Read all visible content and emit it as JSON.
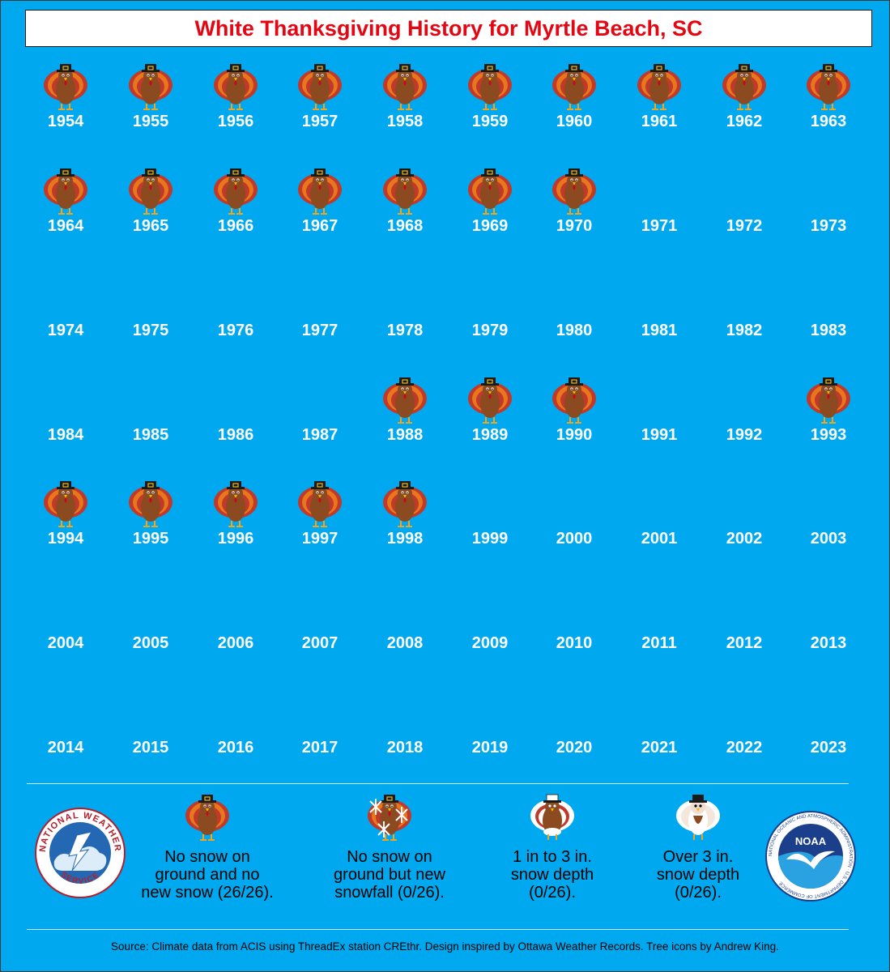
{
  "title": "White Thanksgiving History for Myrtle Beach, SC",
  "years": [
    {
      "year": "1954",
      "icon": "turkey-icon"
    },
    {
      "year": "1955",
      "icon": "turkey-icon"
    },
    {
      "year": "1956",
      "icon": "turkey-icon"
    },
    {
      "year": "1957",
      "icon": "turkey-icon"
    },
    {
      "year": "1958",
      "icon": "turkey-icon"
    },
    {
      "year": "1959",
      "icon": "turkey-icon"
    },
    {
      "year": "1960",
      "icon": "turkey-icon"
    },
    {
      "year": "1961",
      "icon": "turkey-icon"
    },
    {
      "year": "1962",
      "icon": "turkey-icon"
    },
    {
      "year": "1963",
      "icon": "turkey-icon"
    },
    {
      "year": "1964",
      "icon": "turkey-icon"
    },
    {
      "year": "1965",
      "icon": "turkey-icon"
    },
    {
      "year": "1966",
      "icon": "turkey-icon"
    },
    {
      "year": "1967",
      "icon": "turkey-icon"
    },
    {
      "year": "1968",
      "icon": "turkey-icon"
    },
    {
      "year": "1969",
      "icon": "turkey-icon"
    },
    {
      "year": "1970",
      "icon": "turkey-icon"
    },
    {
      "year": "1971",
      "icon": ""
    },
    {
      "year": "1972",
      "icon": ""
    },
    {
      "year": "1973",
      "icon": ""
    },
    {
      "year": "1974",
      "icon": ""
    },
    {
      "year": "1975",
      "icon": ""
    },
    {
      "year": "1976",
      "icon": ""
    },
    {
      "year": "1977",
      "icon": ""
    },
    {
      "year": "1978",
      "icon": ""
    },
    {
      "year": "1979",
      "icon": ""
    },
    {
      "year": "1980",
      "icon": ""
    },
    {
      "year": "1981",
      "icon": ""
    },
    {
      "year": "1982",
      "icon": ""
    },
    {
      "year": "1983",
      "icon": ""
    },
    {
      "year": "1984",
      "icon": ""
    },
    {
      "year": "1985",
      "icon": ""
    },
    {
      "year": "1986",
      "icon": ""
    },
    {
      "year": "1987",
      "icon": ""
    },
    {
      "year": "1988",
      "icon": "turkey-icon"
    },
    {
      "year": "1989",
      "icon": "turkey-icon"
    },
    {
      "year": "1990",
      "icon": "turkey-icon"
    },
    {
      "year": "1991",
      "icon": ""
    },
    {
      "year": "1992",
      "icon": ""
    },
    {
      "year": "1993",
      "icon": "turkey-icon"
    },
    {
      "year": "1994",
      "icon": "turkey-icon"
    },
    {
      "year": "1995",
      "icon": "turkey-icon"
    },
    {
      "year": "1996",
      "icon": "turkey-icon"
    },
    {
      "year": "1997",
      "icon": "turkey-icon"
    },
    {
      "year": "1998",
      "icon": "turkey-icon"
    },
    {
      "year": "1999",
      "icon": ""
    },
    {
      "year": "2000",
      "icon": ""
    },
    {
      "year": "2001",
      "icon": ""
    },
    {
      "year": "2002",
      "icon": ""
    },
    {
      "year": "2003",
      "icon": ""
    },
    {
      "year": "2004",
      "icon": ""
    },
    {
      "year": "2005",
      "icon": ""
    },
    {
      "year": "2006",
      "icon": ""
    },
    {
      "year": "2007",
      "icon": ""
    },
    {
      "year": "2008",
      "icon": ""
    },
    {
      "year": "2009",
      "icon": ""
    },
    {
      "year": "2010",
      "icon": ""
    },
    {
      "year": "2011",
      "icon": ""
    },
    {
      "year": "2012",
      "icon": ""
    },
    {
      "year": "2013",
      "icon": ""
    },
    {
      "year": "2014",
      "icon": ""
    },
    {
      "year": "2015",
      "icon": ""
    },
    {
      "year": "2016",
      "icon": ""
    },
    {
      "year": "2017",
      "icon": ""
    },
    {
      "year": "2018",
      "icon": ""
    },
    {
      "year": "2019",
      "icon": ""
    },
    {
      "year": "2020",
      "icon": ""
    },
    {
      "year": "2021",
      "icon": ""
    },
    {
      "year": "2022",
      "icon": ""
    },
    {
      "year": "2023",
      "icon": ""
    }
  ],
  "legend": [
    {
      "icon": "turkey-icon",
      "lines": [
        "No snow on",
        "ground and no",
        "new snow (26/26)."
      ]
    },
    {
      "icon": "turkey-snowflakes-icon",
      "lines": [
        "No snow on",
        "ground but new",
        "snowfall (0/26)."
      ]
    },
    {
      "icon": "turkey-snow-light-icon",
      "lines": [
        "1 in to 3 in.",
        "snow depth",
        "(0/26)."
      ]
    },
    {
      "icon": "turkey-snow-heavy-icon",
      "lines": [
        "Over 3 in.",
        "snow depth",
        "(0/26)."
      ]
    }
  ],
  "logos": {
    "nws": {
      "text_top": "NATIONAL WEATHER",
      "text_bottom": "SERVICE",
      "icon": "nws-logo-icon"
    },
    "noaa": {
      "center_text": "NOAA",
      "ring_text": "NATIONAL OCEANIC AND ATMOSPHERIC ADMINISTRATION · U.S. DEPARTMENT OF COMMERCE",
      "icon": "noaa-logo-icon"
    }
  },
  "source": "Source: Climate data from ACIS using ThreadEx station CREthr. Design inspired by Ottawa Weather Records. Tree icons by Andrew King.",
  "colors": {
    "background": "#00a9ef",
    "title": "#e30613",
    "year_text": "#ffffff"
  }
}
